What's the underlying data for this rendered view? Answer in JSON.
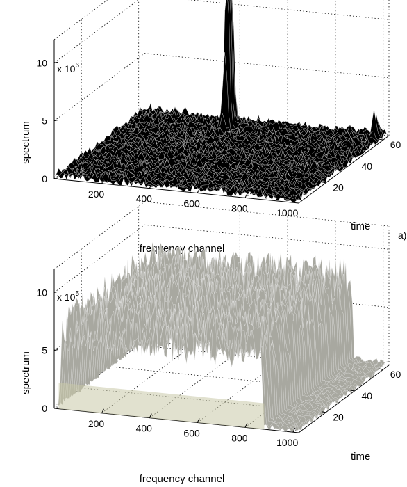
{
  "chart_data": [
    {
      "type": "surface",
      "panel_label": "a)",
      "title": "",
      "xlabel": "frequency channel",
      "ylabel": "time",
      "zlabel": "spectrum",
      "z_scale_text": "x 10",
      "z_scale_exponent": "6",
      "xlim": [
        1,
        1024
      ],
      "ylim": [
        1,
        64
      ],
      "zlim": [
        0,
        12
      ],
      "xticks": [
        "200",
        "400",
        "600",
        "800",
        "1000"
      ],
      "yticks": [
        "20",
        "40",
        "60"
      ],
      "zticks": [
        "0",
        "5",
        "10"
      ],
      "grid": true,
      "surface_color": "#000000",
      "mesh_color": "#ffffff",
      "noise_level": 0.6,
      "peaks": [
        {
          "x": 390,
          "y": 58,
          "value": 13
        },
        {
          "x": 385,
          "y": 60,
          "value": 11
        },
        {
          "x": 395,
          "y": 56,
          "value": 9
        },
        {
          "x": 990,
          "y": 60,
          "value": 2.2
        }
      ]
    },
    {
      "type": "surface",
      "panel_label": "",
      "title": "",
      "xlabel": "frequency channel",
      "ylabel": "time",
      "zlabel": "spectrum",
      "z_scale_text": "x 10",
      "z_scale_exponent": "5",
      "xlim": [
        1,
        1024
      ],
      "ylim": [
        1,
        64
      ],
      "zlim": [
        0,
        12
      ],
      "xticks": [
        "200",
        "400",
        "600",
        "800",
        "1000"
      ],
      "yticks": [
        "20",
        "40",
        "60"
      ],
      "zticks": [
        "0",
        "5",
        "10"
      ],
      "grid": true,
      "surface_color": "#a8a8a0",
      "mesh_color": "#e8e8e8",
      "band_x": [
        20,
        880
      ],
      "band_level": 9,
      "noise_level": 0.5
    }
  ]
}
